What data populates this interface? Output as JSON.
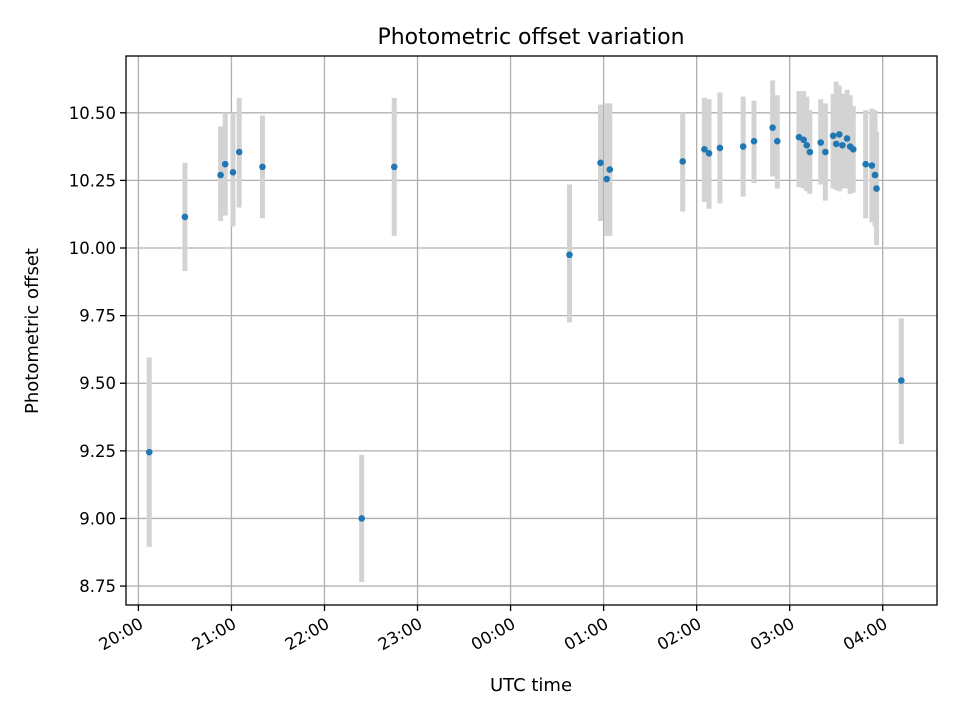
{
  "chart_data": {
    "type": "scatter",
    "title": "Photometric offset variation",
    "xlabel": "UTC time",
    "ylabel": "Photometric offset",
    "xlim": [
      "19:52",
      "04:35"
    ],
    "ylim": [
      8.68,
      10.71
    ],
    "grid": true,
    "colors": {
      "point": "#1f77b4",
      "errorbar": "#d3d3d3"
    },
    "xticks": [
      "20:00",
      "21:00",
      "22:00",
      "23:00",
      "00:00",
      "01:00",
      "02:00",
      "03:00",
      "04:00"
    ],
    "yticks": [
      "8.75",
      "9.00",
      "9.25",
      "9.50",
      "9.75",
      "10.00",
      "10.25",
      "10.50"
    ],
    "points": [
      {
        "x": "20:07",
        "y": 9.245,
        "yerr_low": 8.895,
        "yerr_high": 9.595
      },
      {
        "x": "20:30",
        "y": 10.115,
        "yerr_low": 9.915,
        "yerr_high": 10.315
      },
      {
        "x": "20:53",
        "y": 10.27,
        "yerr_low": 10.1,
        "yerr_high": 10.45
      },
      {
        "x": "20:56",
        "y": 10.31,
        "yerr_low": 10.12,
        "yerr_high": 10.5
      },
      {
        "x": "21:01",
        "y": 10.28,
        "yerr_low": 10.08,
        "yerr_high": 10.5
      },
      {
        "x": "21:05",
        "y": 10.355,
        "yerr_low": 10.15,
        "yerr_high": 10.555
      },
      {
        "x": "21:20",
        "y": 10.3,
        "yerr_low": 10.11,
        "yerr_high": 10.49
      },
      {
        "x": "22:24",
        "y": 9.0,
        "yerr_low": 8.765,
        "yerr_high": 9.235
      },
      {
        "x": "22:45",
        "y": 10.3,
        "yerr_low": 10.045,
        "yerr_high": 10.555
      },
      {
        "x": "00:38",
        "y": 9.975,
        "yerr_low": 9.725,
        "yerr_high": 10.235
      },
      {
        "x": "00:58",
        "y": 10.315,
        "yerr_low": 10.1,
        "yerr_high": 10.53
      },
      {
        "x": "01:02",
        "y": 10.255,
        "yerr_low": 10.045,
        "yerr_high": 10.535
      },
      {
        "x": "01:04",
        "y": 10.29,
        "yerr_low": 10.045,
        "yerr_high": 10.535
      },
      {
        "x": "01:51",
        "y": 10.32,
        "yerr_low": 10.135,
        "yerr_high": 10.5
      },
      {
        "x": "02:05",
        "y": 10.365,
        "yerr_low": 10.17,
        "yerr_high": 10.555
      },
      {
        "x": "02:08",
        "y": 10.35,
        "yerr_low": 10.145,
        "yerr_high": 10.55
      },
      {
        "x": "02:15",
        "y": 10.37,
        "yerr_low": 10.165,
        "yerr_high": 10.575
      },
      {
        "x": "02:30",
        "y": 10.375,
        "yerr_low": 10.19,
        "yerr_high": 10.56
      },
      {
        "x": "02:37",
        "y": 10.395,
        "yerr_low": 10.24,
        "yerr_high": 10.545
      },
      {
        "x": "02:49",
        "y": 10.445,
        "yerr_low": 10.265,
        "yerr_high": 10.62
      },
      {
        "x": "02:52",
        "y": 10.395,
        "yerr_low": 10.22,
        "yerr_high": 10.565
      },
      {
        "x": "03:06",
        "y": 10.41,
        "yerr_low": 10.225,
        "yerr_high": 10.58
      },
      {
        "x": "03:09",
        "y": 10.4,
        "yerr_low": 10.22,
        "yerr_high": 10.58
      },
      {
        "x": "03:11",
        "y": 10.38,
        "yerr_low": 10.21,
        "yerr_high": 10.56
      },
      {
        "x": "03:13",
        "y": 10.355,
        "yerr_low": 10.2,
        "yerr_high": 10.51
      },
      {
        "x": "03:20",
        "y": 10.39,
        "yerr_low": 10.235,
        "yerr_high": 10.55
      },
      {
        "x": "03:23",
        "y": 10.355,
        "yerr_low": 10.175,
        "yerr_high": 10.535
      },
      {
        "x": "03:28",
        "y": 10.415,
        "yerr_low": 10.22,
        "yerr_high": 10.57
      },
      {
        "x": "03:30",
        "y": 10.385,
        "yerr_low": 10.215,
        "yerr_high": 10.615
      },
      {
        "x": "03:32",
        "y": 10.42,
        "yerr_low": 10.21,
        "yerr_high": 10.6
      },
      {
        "x": "03:34",
        "y": 10.38,
        "yerr_low": 10.22,
        "yerr_high": 10.57
      },
      {
        "x": "03:37",
        "y": 10.405,
        "yerr_low": 10.22,
        "yerr_high": 10.585
      },
      {
        "x": "03:39",
        "y": 10.375,
        "yerr_low": 10.2,
        "yerr_high": 10.565
      },
      {
        "x": "03:41",
        "y": 10.365,
        "yerr_low": 10.205,
        "yerr_high": 10.525
      },
      {
        "x": "03:49",
        "y": 10.31,
        "yerr_low": 10.11,
        "yerr_high": 10.51
      },
      {
        "x": "03:53",
        "y": 10.305,
        "yerr_low": 10.095,
        "yerr_high": 10.515
      },
      {
        "x": "03:55",
        "y": 10.27,
        "yerr_low": 10.08,
        "yerr_high": 10.51
      },
      {
        "x": "03:56",
        "y": 10.22,
        "yerr_low": 10.01,
        "yerr_high": 10.43
      },
      {
        "x": "04:12",
        "y": 9.51,
        "yerr_low": 9.275,
        "yerr_high": 9.74
      }
    ]
  }
}
